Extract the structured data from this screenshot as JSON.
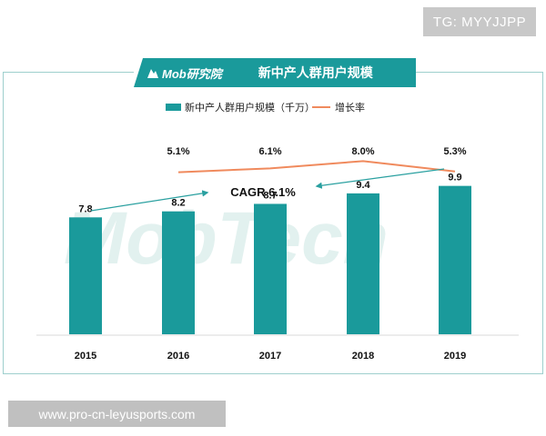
{
  "badge_text": "TG: MYYJJPP",
  "footer_text": "www.pro-cn-leyusports.com",
  "brand": {
    "name": "Mob研究院",
    "watermark": "MobTech"
  },
  "colors": {
    "bar": "#1a9a9b",
    "line": "#f08a5d",
    "arrow": "#2aa0a0",
    "title_bg": "#1a9a9b"
  },
  "chart_data": {
    "type": "bar",
    "title": "新中产人群用户规模",
    "categories": [
      "2015",
      "2016",
      "2017",
      "2018",
      "2019"
    ],
    "series": [
      {
        "name": "新中产人群用户规模（千万）",
        "values": [
          7.8,
          8.2,
          8.7,
          9.4,
          9.9
        ],
        "labels": [
          "7.8",
          "8.2",
          "8.7",
          "9.4",
          "9.9"
        ]
      },
      {
        "name": "增长率",
        "type": "line",
        "x": [
          "2016",
          "2017",
          "2018",
          "2019"
        ],
        "values": [
          5.1,
          6.1,
          8.0,
          5.3
        ],
        "labels": [
          "5.1%",
          "6.1%",
          "8.0%",
          "5.3%"
        ]
      }
    ],
    "annotation": "CAGR 6.1%",
    "ylim": [
      0,
      12
    ],
    "legend_position": "top",
    "grid": false
  }
}
